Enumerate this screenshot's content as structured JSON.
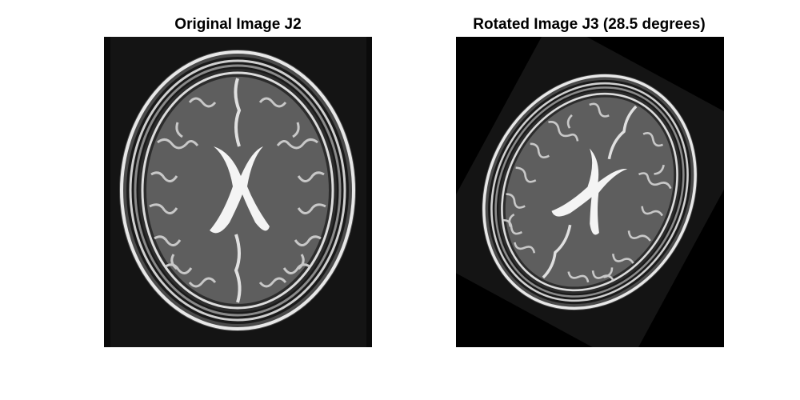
{
  "figure": {
    "panels": [
      {
        "title": "Original Image J2"
      },
      {
        "title": "Rotated Image J3 (28.5 degrees)"
      }
    ]
  }
}
